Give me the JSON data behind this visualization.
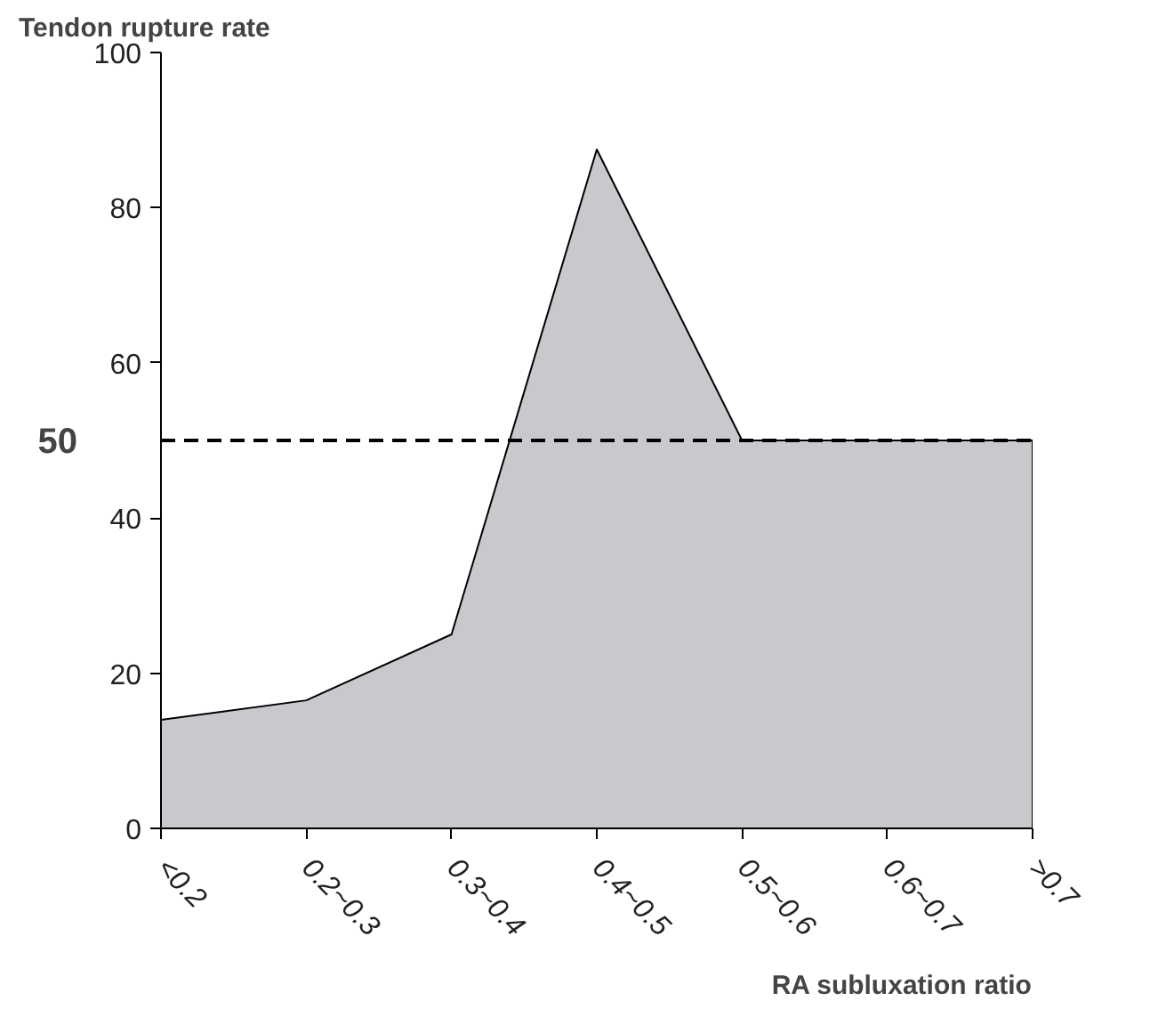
{
  "chart_data": {
    "type": "area",
    "ylabel": "Tendon rupture rate",
    "xlabel": "RA subluxation ratio",
    "categories": [
      "<0.2",
      "0.2~0.3",
      "0.3~0.4",
      "0.4~0.5",
      "0.5~0.6",
      "0.6~0.7",
      ">0.7"
    ],
    "values": [
      14,
      16.5,
      25,
      87.5,
      50,
      50,
      50
    ],
    "color": "#c8c9cc",
    "ylim": [
      0,
      100
    ],
    "yticks": [
      0,
      20,
      40,
      60,
      80,
      100
    ],
    "grid": false,
    "ref_lines": [
      {
        "axis": "y",
        "value": 50,
        "label": "50",
        "line_style": "dashed",
        "color": "#000000"
      }
    ]
  }
}
